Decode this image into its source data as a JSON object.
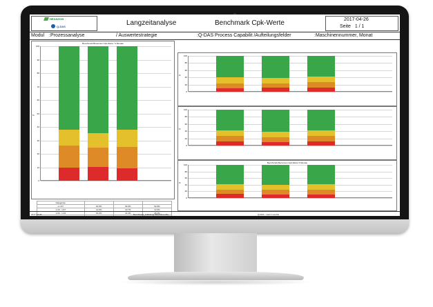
{
  "header": {
    "logo_hexagon": "HEXAGON",
    "logo_qdas": "Q-DAS",
    "title_left": "Langzeitanalyse",
    "title_center": "Benchmark Cpk-Werte",
    "date": "2017-04-26",
    "page_label": "Seite",
    "page_value": "1 / 1"
  },
  "breadcrumb": {
    "module_label": "Modul",
    "module_value": ":Prozessanalyse",
    "strategy": "/  Auswertestrategie",
    "capability": ":Q-DAS Process Capabilit /Aufteilungsfelder",
    "fields": ":Maschinennummer, Monat"
  },
  "colors": {
    "green": "#3aa64a",
    "yellow": "#e4c12c",
    "orange": "#de8a26",
    "red": "#dd2a2a"
  },
  "chart_data": [
    {
      "type": "bar",
      "title": "Benchmark Benennen Cpk-Werte / 3 Monate",
      "ylabel": "%",
      "ylim": [
        0,
        100
      ],
      "categories": [
        "",
        "",
        ""
      ],
      "series": [
        {
          "values": [
            9.9,
            10.4,
            9.2
          ]
        },
        {
          "values": [
            16.2,
            14.4,
            16.1
          ]
        },
        {
          "values": [
            12.0,
            10.7,
            12.4
          ]
        },
        {
          "values": [
            61.9,
            64.5,
            62.3
          ]
        }
      ]
    },
    {
      "type": "bar",
      "ylabel": "%",
      "ylim": [
        0,
        100
      ],
      "categories": [
        "",
        "",
        ""
      ],
      "series": [
        {
          "values": [
            10,
            12,
            11
          ]
        },
        {
          "values": [
            14,
            12,
            15
          ]
        },
        {
          "values": [
            16,
            14,
            17
          ]
        },
        {
          "values": [
            60,
            62,
            57
          ]
        }
      ]
    },
    {
      "type": "bar",
      "ylabel": "%",
      "ylim": [
        0,
        100
      ],
      "categories": [
        "",
        "",
        ""
      ],
      "series": [
        {
          "values": [
            11,
            10,
            12
          ]
        },
        {
          "values": [
            15,
            13,
            14
          ]
        },
        {
          "values": [
            16,
            15,
            16
          ]
        },
        {
          "values": [
            58,
            62,
            58
          ]
        }
      ]
    },
    {
      "type": "bar",
      "title": "Benchmark Benennen Cpk-Werte 3 Monate",
      "ylabel": "%",
      "ylim": [
        0,
        100
      ],
      "categories": [
        "",
        "",
        ""
      ],
      "series": [
        {
          "values": [
            12,
            10,
            11
          ]
        },
        {
          "values": [
            13,
            14,
            13
          ]
        },
        {
          "values": [
            17,
            16,
            17
          ]
        },
        {
          "values": [
            58,
            60,
            59
          ]
        }
      ]
    }
  ],
  "stats": {
    "rows": [
      [
        "Kategorien",
        "",
        "",
        ""
      ],
      [
        "≥ 1.67",
        "61.9%",
        "64.5%",
        "62.3%"
      ],
      [
        "1.33 - 1.67",
        "12.0%",
        "10.7%",
        "12.4%"
      ],
      [
        "1.00 - 1.33",
        "16.2%",
        "14.4%",
        "16.1%"
      ],
      [
        "< 1.00",
        "9.9%",
        "10.4%",
        "9.2%"
      ]
    ]
  },
  "footer": {
    "left": "2017-04-26",
    "center": "Benchmark_Aufteilung Maschinen.dfq",
    "right": "Q-DAS - Last 3 months"
  }
}
